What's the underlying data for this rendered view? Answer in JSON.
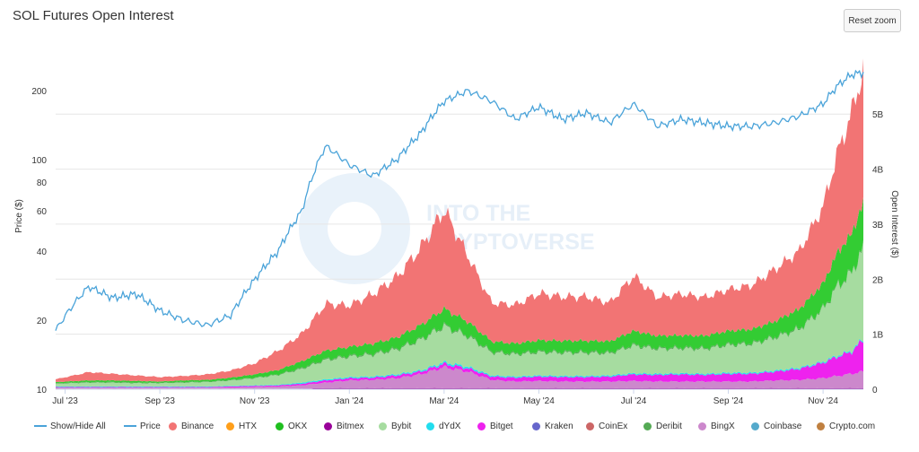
{
  "title": "SOL Futures Open Interest",
  "reset_zoom_label": "Reset zoom",
  "watermark_text": [
    "INTO THE",
    "CRYPTOVERSE"
  ],
  "chart_data": {
    "type": "area",
    "title": "SOL Futures Open Interest",
    "x_ticks": [
      "Jul '23",
      "Sep '23",
      "Nov '23",
      "Jan '24",
      "Mar '24",
      "May '24",
      "Jul '24",
      "Sep '24",
      "Nov '24"
    ],
    "x_tick_months": [
      0,
      2,
      4,
      6,
      8,
      10,
      12,
      14,
      16
    ],
    "x_range_months": [
      -0.2,
      16.85
    ],
    "y_left": {
      "label": "Price ($)",
      "scale": "log",
      "range": [
        10,
        260
      ],
      "ticks": [
        10,
        20,
        40,
        60,
        80,
        100,
        200
      ],
      "tick_labels": [
        "10",
        "20",
        "40",
        "60",
        "80",
        "100",
        "200"
      ]
    },
    "y_right": {
      "label": "Open Interest ($)",
      "range": [
        0,
        5.9
      ],
      "ticks": [
        0,
        1,
        2,
        3,
        4,
        5
      ],
      "tick_labels": [
        "0",
        "1B",
        "2B",
        "3B",
        "4B",
        "5B"
      ]
    },
    "months": [
      -0.2,
      0.5,
      1,
      1.5,
      2,
      2.5,
      3,
      3.5,
      4,
      4.5,
      5,
      5.5,
      6,
      6.5,
      7,
      7.5,
      8,
      8.5,
      9,
      9.5,
      10,
      10.5,
      11,
      11.5,
      12,
      12.5,
      13,
      13.5,
      14,
      14.5,
      15,
      15.5,
      16,
      16.3,
      16.6,
      16.85
    ],
    "price": [
      18,
      28,
      25,
      26,
      22,
      20,
      19,
      21,
      30,
      40,
      60,
      115,
      95,
      85,
      100,
      130,
      180,
      200,
      180,
      150,
      170,
      150,
      160,
      145,
      175,
      140,
      150,
      145,
      140,
      140,
      145,
      155,
      175,
      210,
      235,
      240
    ],
    "series": [
      {
        "name": "Bitmex",
        "color": "#990099",
        "values": [
          0.01,
          0.01,
          0.01,
          0.01,
          0.01,
          0.01,
          0.01,
          0.01,
          0.01,
          0.01,
          0.01,
          0.02,
          0.02,
          0.02,
          0.02,
          0.02,
          0.02,
          0.02,
          0.02,
          0.02,
          0.02,
          0.02,
          0.02,
          0.02,
          0.02,
          0.02,
          0.02,
          0.02,
          0.02,
          0.02,
          0.02,
          0.02,
          0.02,
          0.02,
          0.02,
          0.02
        ]
      },
      {
        "name": "BingX",
        "color": "#cc88cc",
        "values": [
          0.02,
          0.02,
          0.02,
          0.02,
          0.02,
          0.02,
          0.02,
          0.02,
          0.03,
          0.04,
          0.06,
          0.1,
          0.14,
          0.15,
          0.18,
          0.25,
          0.38,
          0.3,
          0.15,
          0.12,
          0.13,
          0.12,
          0.12,
          0.12,
          0.13,
          0.12,
          0.12,
          0.12,
          0.12,
          0.12,
          0.14,
          0.15,
          0.18,
          0.22,
          0.26,
          0.3
        ]
      },
      {
        "name": "Bitget",
        "color": "#ee22ee",
        "values": [
          0.01,
          0.01,
          0.01,
          0.01,
          0.01,
          0.01,
          0.01,
          0.02,
          0.02,
          0.02,
          0.03,
          0.04,
          0.04,
          0.04,
          0.05,
          0.05,
          0.06,
          0.06,
          0.06,
          0.07,
          0.08,
          0.08,
          0.08,
          0.09,
          0.12,
          0.12,
          0.13,
          0.12,
          0.14,
          0.14,
          0.16,
          0.2,
          0.28,
          0.35,
          0.4,
          0.58
        ]
      },
      {
        "name": "dYdX",
        "color": "#22ddee",
        "values": [
          0.01,
          0.01,
          0.01,
          0.01,
          0.01,
          0.01,
          0.01,
          0.01,
          0.01,
          0.01,
          0.02,
          0.02,
          0.02,
          0.02,
          0.02,
          0.02,
          0.03,
          0.03,
          0.02,
          0.02,
          0.02,
          0.02,
          0.02,
          0.02,
          0.02,
          0.02,
          0.02,
          0.02,
          0.02,
          0.02,
          0.02,
          0.02,
          0.02,
          0.02,
          0.02,
          0.02
        ]
      },
      {
        "name": "Bybit",
        "color": "#a6dca0",
        "values": [
          0.05,
          0.07,
          0.07,
          0.06,
          0.06,
          0.07,
          0.08,
          0.1,
          0.13,
          0.18,
          0.25,
          0.35,
          0.37,
          0.4,
          0.45,
          0.55,
          0.65,
          0.55,
          0.42,
          0.4,
          0.42,
          0.42,
          0.42,
          0.4,
          0.5,
          0.45,
          0.45,
          0.45,
          0.5,
          0.52,
          0.6,
          0.7,
          0.95,
          1.25,
          1.4,
          1.65
        ]
      },
      {
        "name": "Deribit",
        "color": "#55aa55",
        "values": [
          0.01,
          0.01,
          0.01,
          0.01,
          0.01,
          0.01,
          0.01,
          0.01,
          0.01,
          0.01,
          0.02,
          0.02,
          0.02,
          0.02,
          0.02,
          0.02,
          0.02,
          0.02,
          0.02,
          0.02,
          0.02,
          0.02,
          0.02,
          0.02,
          0.02,
          0.02,
          0.02,
          0.02,
          0.02,
          0.02,
          0.02,
          0.02,
          0.02,
          0.02,
          0.02,
          0.02
        ]
      },
      {
        "name": "OKX",
        "color": "#33cc33",
        "values": [
          0.02,
          0.03,
          0.03,
          0.03,
          0.02,
          0.03,
          0.03,
          0.04,
          0.06,
          0.08,
          0.12,
          0.15,
          0.16,
          0.18,
          0.2,
          0.25,
          0.3,
          0.25,
          0.18,
          0.18,
          0.2,
          0.2,
          0.2,
          0.2,
          0.25,
          0.22,
          0.22,
          0.22,
          0.24,
          0.25,
          0.28,
          0.35,
          0.45,
          0.6,
          0.7,
          0.8
        ]
      },
      {
        "name": "Binance",
        "color": "#f27474",
        "values": [
          0.05,
          0.15,
          0.12,
          0.1,
          0.08,
          0.08,
          0.1,
          0.13,
          0.2,
          0.35,
          0.5,
          0.85,
          0.75,
          0.9,
          1.1,
          1.4,
          1.8,
          1.2,
          0.7,
          0.7,
          0.85,
          0.8,
          0.8,
          0.7,
          1.0,
          0.7,
          0.75,
          0.7,
          0.75,
          0.8,
          0.95,
          1.05,
          1.4,
          1.8,
          2.2,
          2.4
        ]
      }
    ]
  },
  "legend": [
    {
      "label": "Show/Hide All",
      "color": "#4aa3d9",
      "kind": "line"
    },
    {
      "label": "Price",
      "color": "#4aa3d9",
      "kind": "line"
    },
    {
      "label": "Binance",
      "color": "#f27474",
      "kind": "dot"
    },
    {
      "label": "HTX",
      "color": "#ff9f1a",
      "kind": "dot"
    },
    {
      "label": "OKX",
      "color": "#1fbf1f",
      "kind": "dot"
    },
    {
      "label": "Bitmex",
      "color": "#990099",
      "kind": "dot"
    },
    {
      "label": "Bybit",
      "color": "#a6dca0",
      "kind": "dot"
    },
    {
      "label": "dYdX",
      "color": "#22ddee",
      "kind": "dot"
    },
    {
      "label": "Bitget",
      "color": "#ee22ee",
      "kind": "dot"
    },
    {
      "label": "Kraken",
      "color": "#6666cc",
      "kind": "dot"
    },
    {
      "label": "CoinEx",
      "color": "#cc6666",
      "kind": "dot"
    },
    {
      "label": "Deribit",
      "color": "#55aa55",
      "kind": "dot"
    },
    {
      "label": "BingX",
      "color": "#cc88cc",
      "kind": "dot"
    },
    {
      "label": "Coinbase",
      "color": "#55aacc",
      "kind": "dot"
    },
    {
      "label": "Crypto.com",
      "color": "#c08040",
      "kind": "dot"
    }
  ]
}
